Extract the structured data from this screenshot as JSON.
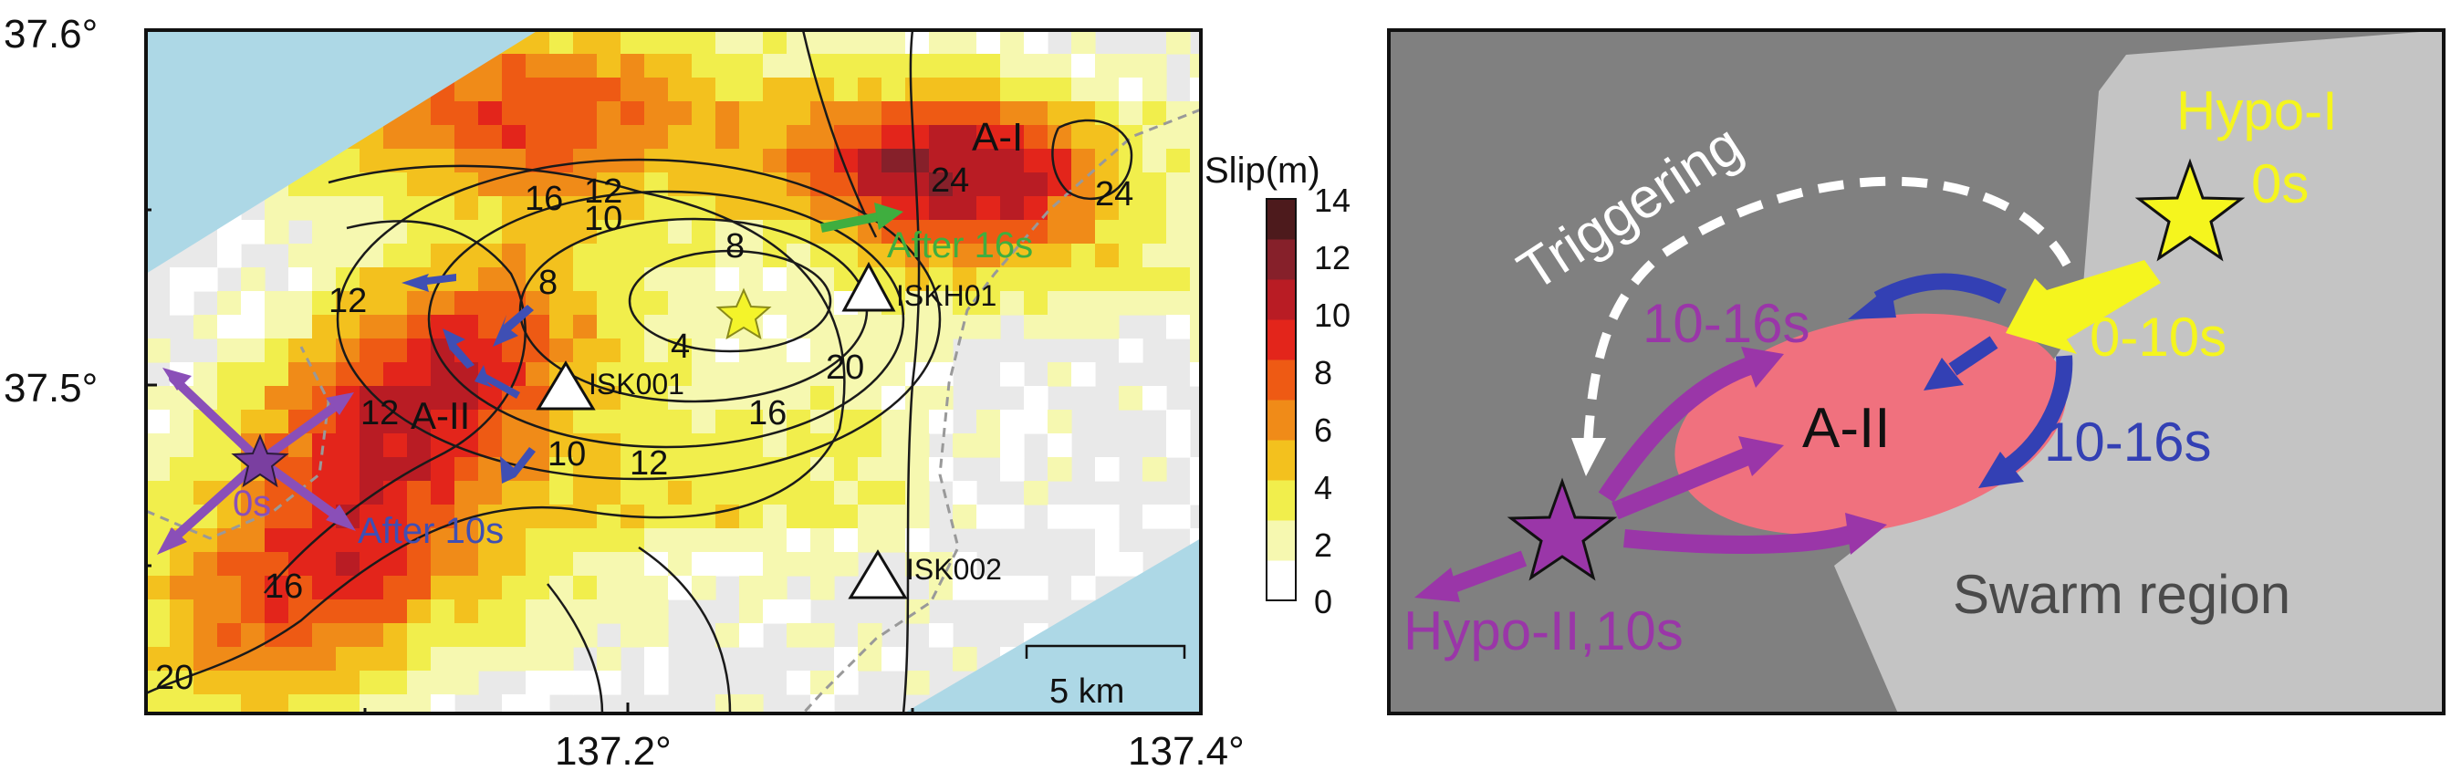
{
  "left_panel": {
    "axis": {
      "y_ticks": [
        "37.6°",
        "37.5°"
      ],
      "x_ticks": [
        "137.2°",
        "137.4°"
      ]
    },
    "colorbar": {
      "title": "Slip(m)",
      "ticks": [
        "14",
        "12",
        "10",
        "8",
        "6",
        "4",
        "2",
        "0"
      ],
      "colors": [
        "#ffffff",
        "#f6f8b0",
        "#f1ee4c",
        "#f3c11e",
        "#f08b18",
        "#ee5a14",
        "#e3251b",
        "#b91c24",
        "#86202a",
        "#4d1a1c"
      ]
    },
    "contour_labels": [
      "16",
      "12",
      "10",
      "8",
      "8",
      "4",
      "12",
      "20",
      "16",
      "12",
      "10",
      "12",
      "16",
      "20",
      "24",
      "24"
    ],
    "region_labels": {
      "a1": "A-I",
      "a2": "A-II"
    },
    "stations": [
      "ISKH01",
      "ISK001",
      "ISK002"
    ],
    "annotations": {
      "after16": "After 16s",
      "after10": "After 10s",
      "zero_s": "0s"
    },
    "scalebar_label": "5 km",
    "colors": {
      "sea": "#add8e6",
      "land": "#e8e8e8",
      "hypo1": "#f4f42a",
      "hypo2": "#7a3fa0",
      "arrow_blue": "#3f4fb4",
      "arrow_green": "#3fae3f"
    }
  },
  "right_panel": {
    "labels": {
      "hypo1": "Hypo-I",
      "hypo1_time": "0s",
      "triggering": "Triggering",
      "range_0_10": "0-10s",
      "range_10_16_purple": "10-16s",
      "range_10_16_blue": "10-16s",
      "a2": "A-II",
      "hypo2": "Hypo-II,10s",
      "swarm": "Swarm region"
    },
    "colors": {
      "bg": "#808080",
      "swarm": "#c4c4c4",
      "ellipse": "#f0717e",
      "yellow": "#f5f51e",
      "purple": "#9a36a8",
      "blue": "#3340b4"
    }
  }
}
